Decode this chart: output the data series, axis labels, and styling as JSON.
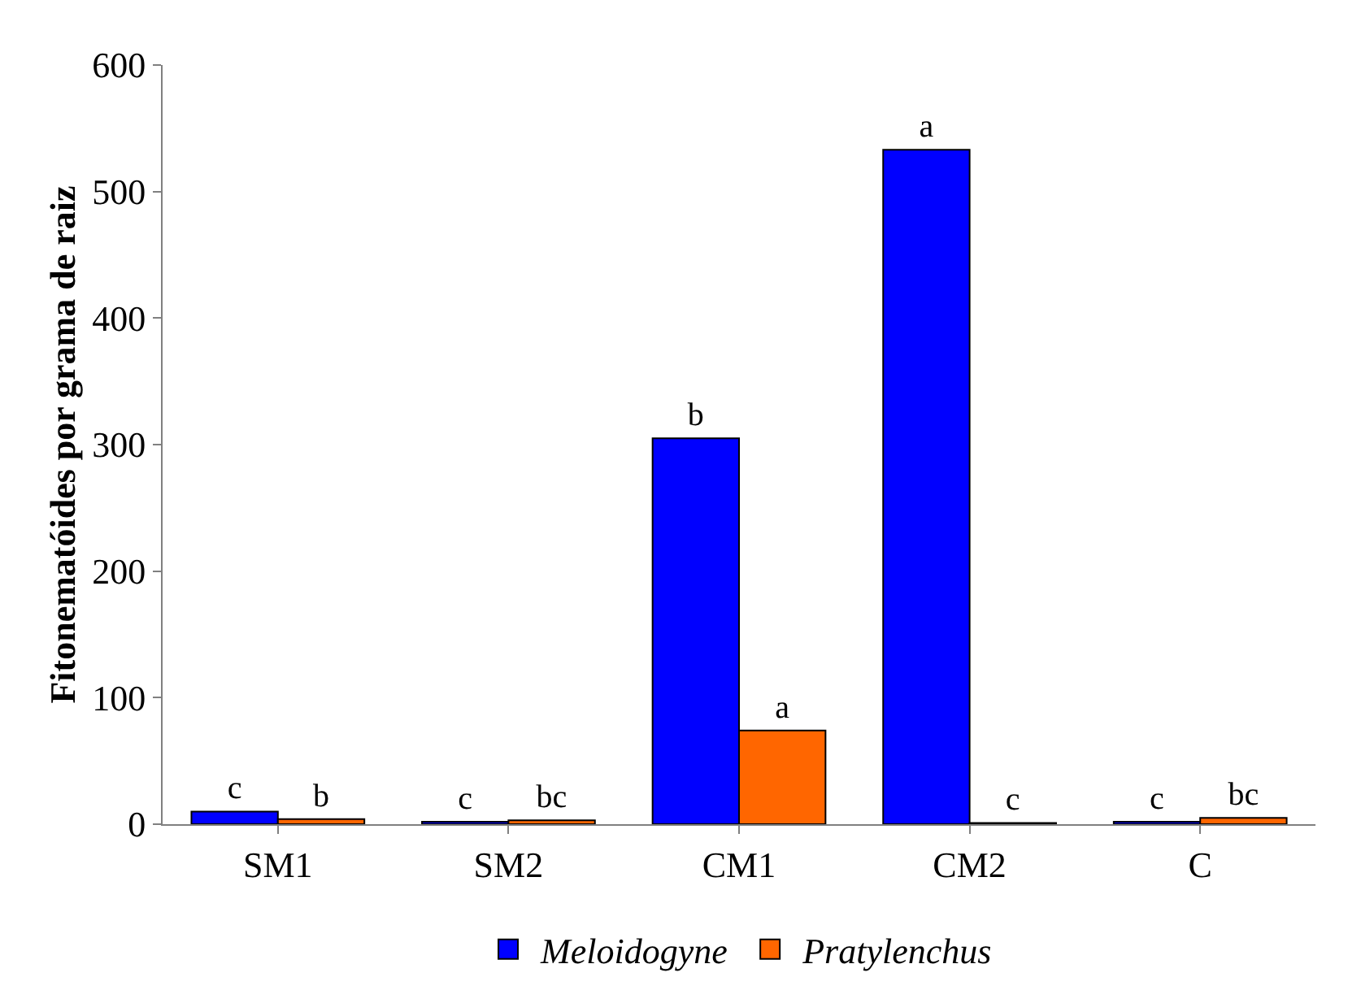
{
  "chart_data": {
    "type": "bar",
    "ylabel": "Fitonematóides por grama de raiz",
    "categories": [
      "SM1",
      "SM2",
      "CM1",
      "CM2",
      "C"
    ],
    "series": [
      {
        "name": "Meloidogyne",
        "color": "#0000ff",
        "values": [
          10,
          2,
          305,
          533,
          2
        ],
        "value_labels": [
          "c",
          "c",
          "b",
          "a",
          "c"
        ]
      },
      {
        "name": "Pratylenchus",
        "color": "#ff6600",
        "values": [
          4,
          3,
          74,
          1,
          5
        ],
        "value_labels": [
          "b",
          "bc",
          "a",
          "c",
          "bc"
        ]
      }
    ],
    "ylim": [
      0,
      600
    ],
    "yticks": [
      0,
      100,
      200,
      300,
      400,
      500,
      600
    ],
    "grid": false,
    "legend": "bottom"
  }
}
